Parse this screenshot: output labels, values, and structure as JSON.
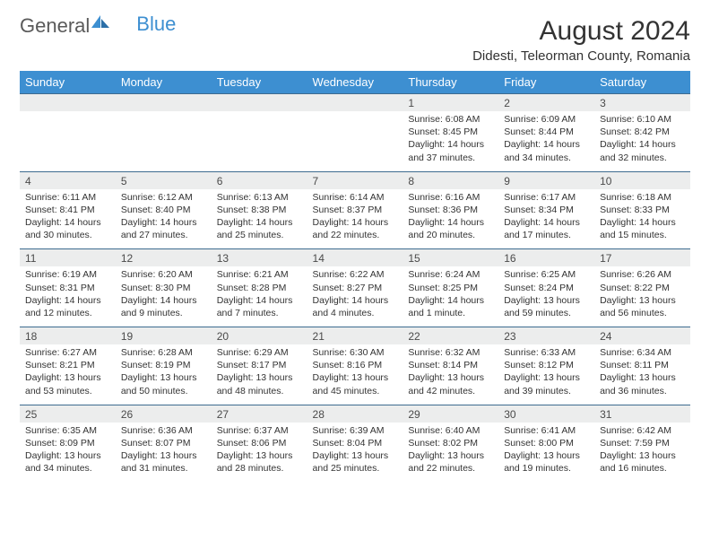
{
  "logo": {
    "text1": "General",
    "text2": "Blue"
  },
  "title": "August 2024",
  "location": "Didesti, Teleorman County, Romania",
  "colors": {
    "header_bg": "#3d8fd1",
    "header_text": "#ffffff",
    "date_row_bg": "#eceded",
    "date_row_border": "#3d6b8f",
    "body_text": "#333333"
  },
  "weekdays": [
    "Sunday",
    "Monday",
    "Tuesday",
    "Wednesday",
    "Thursday",
    "Friday",
    "Saturday"
  ],
  "weeks": [
    {
      "dates": [
        "",
        "",
        "",
        "",
        "1",
        "2",
        "3"
      ],
      "info": [
        null,
        null,
        null,
        null,
        {
          "sunrise": "Sunrise: 6:08 AM",
          "sunset": "Sunset: 8:45 PM",
          "day1": "Daylight: 14 hours",
          "day2": "and 37 minutes."
        },
        {
          "sunrise": "Sunrise: 6:09 AM",
          "sunset": "Sunset: 8:44 PM",
          "day1": "Daylight: 14 hours",
          "day2": "and 34 minutes."
        },
        {
          "sunrise": "Sunrise: 6:10 AM",
          "sunset": "Sunset: 8:42 PM",
          "day1": "Daylight: 14 hours",
          "day2": "and 32 minutes."
        }
      ]
    },
    {
      "dates": [
        "4",
        "5",
        "6",
        "7",
        "8",
        "9",
        "10"
      ],
      "info": [
        {
          "sunrise": "Sunrise: 6:11 AM",
          "sunset": "Sunset: 8:41 PM",
          "day1": "Daylight: 14 hours",
          "day2": "and 30 minutes."
        },
        {
          "sunrise": "Sunrise: 6:12 AM",
          "sunset": "Sunset: 8:40 PM",
          "day1": "Daylight: 14 hours",
          "day2": "and 27 minutes."
        },
        {
          "sunrise": "Sunrise: 6:13 AM",
          "sunset": "Sunset: 8:38 PM",
          "day1": "Daylight: 14 hours",
          "day2": "and 25 minutes."
        },
        {
          "sunrise": "Sunrise: 6:14 AM",
          "sunset": "Sunset: 8:37 PM",
          "day1": "Daylight: 14 hours",
          "day2": "and 22 minutes."
        },
        {
          "sunrise": "Sunrise: 6:16 AM",
          "sunset": "Sunset: 8:36 PM",
          "day1": "Daylight: 14 hours",
          "day2": "and 20 minutes."
        },
        {
          "sunrise": "Sunrise: 6:17 AM",
          "sunset": "Sunset: 8:34 PM",
          "day1": "Daylight: 14 hours",
          "day2": "and 17 minutes."
        },
        {
          "sunrise": "Sunrise: 6:18 AM",
          "sunset": "Sunset: 8:33 PM",
          "day1": "Daylight: 14 hours",
          "day2": "and 15 minutes."
        }
      ]
    },
    {
      "dates": [
        "11",
        "12",
        "13",
        "14",
        "15",
        "16",
        "17"
      ],
      "info": [
        {
          "sunrise": "Sunrise: 6:19 AM",
          "sunset": "Sunset: 8:31 PM",
          "day1": "Daylight: 14 hours",
          "day2": "and 12 minutes."
        },
        {
          "sunrise": "Sunrise: 6:20 AM",
          "sunset": "Sunset: 8:30 PM",
          "day1": "Daylight: 14 hours",
          "day2": "and 9 minutes."
        },
        {
          "sunrise": "Sunrise: 6:21 AM",
          "sunset": "Sunset: 8:28 PM",
          "day1": "Daylight: 14 hours",
          "day2": "and 7 minutes."
        },
        {
          "sunrise": "Sunrise: 6:22 AM",
          "sunset": "Sunset: 8:27 PM",
          "day1": "Daylight: 14 hours",
          "day2": "and 4 minutes."
        },
        {
          "sunrise": "Sunrise: 6:24 AM",
          "sunset": "Sunset: 8:25 PM",
          "day1": "Daylight: 14 hours",
          "day2": "and 1 minute."
        },
        {
          "sunrise": "Sunrise: 6:25 AM",
          "sunset": "Sunset: 8:24 PM",
          "day1": "Daylight: 13 hours",
          "day2": "and 59 minutes."
        },
        {
          "sunrise": "Sunrise: 6:26 AM",
          "sunset": "Sunset: 8:22 PM",
          "day1": "Daylight: 13 hours",
          "day2": "and 56 minutes."
        }
      ]
    },
    {
      "dates": [
        "18",
        "19",
        "20",
        "21",
        "22",
        "23",
        "24"
      ],
      "info": [
        {
          "sunrise": "Sunrise: 6:27 AM",
          "sunset": "Sunset: 8:21 PM",
          "day1": "Daylight: 13 hours",
          "day2": "and 53 minutes."
        },
        {
          "sunrise": "Sunrise: 6:28 AM",
          "sunset": "Sunset: 8:19 PM",
          "day1": "Daylight: 13 hours",
          "day2": "and 50 minutes."
        },
        {
          "sunrise": "Sunrise: 6:29 AM",
          "sunset": "Sunset: 8:17 PM",
          "day1": "Daylight: 13 hours",
          "day2": "and 48 minutes."
        },
        {
          "sunrise": "Sunrise: 6:30 AM",
          "sunset": "Sunset: 8:16 PM",
          "day1": "Daylight: 13 hours",
          "day2": "and 45 minutes."
        },
        {
          "sunrise": "Sunrise: 6:32 AM",
          "sunset": "Sunset: 8:14 PM",
          "day1": "Daylight: 13 hours",
          "day2": "and 42 minutes."
        },
        {
          "sunrise": "Sunrise: 6:33 AM",
          "sunset": "Sunset: 8:12 PM",
          "day1": "Daylight: 13 hours",
          "day2": "and 39 minutes."
        },
        {
          "sunrise": "Sunrise: 6:34 AM",
          "sunset": "Sunset: 8:11 PM",
          "day1": "Daylight: 13 hours",
          "day2": "and 36 minutes."
        }
      ]
    },
    {
      "dates": [
        "25",
        "26",
        "27",
        "28",
        "29",
        "30",
        "31"
      ],
      "info": [
        {
          "sunrise": "Sunrise: 6:35 AM",
          "sunset": "Sunset: 8:09 PM",
          "day1": "Daylight: 13 hours",
          "day2": "and 34 minutes."
        },
        {
          "sunrise": "Sunrise: 6:36 AM",
          "sunset": "Sunset: 8:07 PM",
          "day1": "Daylight: 13 hours",
          "day2": "and 31 minutes."
        },
        {
          "sunrise": "Sunrise: 6:37 AM",
          "sunset": "Sunset: 8:06 PM",
          "day1": "Daylight: 13 hours",
          "day2": "and 28 minutes."
        },
        {
          "sunrise": "Sunrise: 6:39 AM",
          "sunset": "Sunset: 8:04 PM",
          "day1": "Daylight: 13 hours",
          "day2": "and 25 minutes."
        },
        {
          "sunrise": "Sunrise: 6:40 AM",
          "sunset": "Sunset: 8:02 PM",
          "day1": "Daylight: 13 hours",
          "day2": "and 22 minutes."
        },
        {
          "sunrise": "Sunrise: 6:41 AM",
          "sunset": "Sunset: 8:00 PM",
          "day1": "Daylight: 13 hours",
          "day2": "and 19 minutes."
        },
        {
          "sunrise": "Sunrise: 6:42 AM",
          "sunset": "Sunset: 7:59 PM",
          "day1": "Daylight: 13 hours",
          "day2": "and 16 minutes."
        }
      ]
    }
  ]
}
